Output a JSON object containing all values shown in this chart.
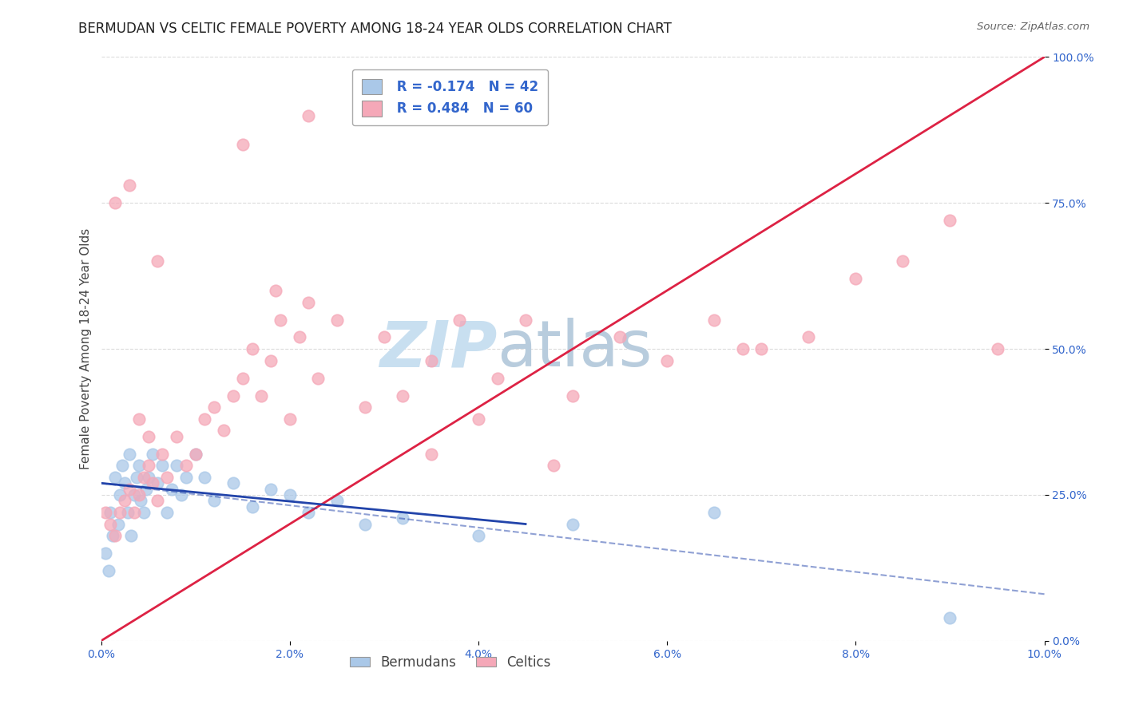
{
  "title": "BERMUDAN VS CELTIC FEMALE POVERTY AMONG 18-24 YEAR OLDS CORRELATION CHART",
  "source": "Source: ZipAtlas.com",
  "ylabel": "Female Poverty Among 18-24 Year Olds",
  "xlim": [
    0.0,
    10.0
  ],
  "ylim": [
    0.0,
    100.0
  ],
  "xtick_labels": [
    "0.0%",
    "2.0%",
    "4.0%",
    "6.0%",
    "8.0%",
    "10.0%"
  ],
  "xtick_vals": [
    0.0,
    2.0,
    4.0,
    6.0,
    8.0,
    10.0
  ],
  "ytick_labels": [
    "0.0%",
    "25.0%",
    "50.0%",
    "75.0%",
    "100.0%"
  ],
  "ytick_vals": [
    0.0,
    25.0,
    50.0,
    75.0,
    100.0
  ],
  "bermudan_color": "#aac8e8",
  "celtic_color": "#f5a8b8",
  "bermudan_R": -0.174,
  "bermudan_N": 42,
  "celtic_R": 0.484,
  "celtic_N": 60,
  "trend_bermudan_color": "#2244aa",
  "trend_celtic_color": "#dd2244",
  "background_color": "#ffffff",
  "grid_color": "#cccccc",
  "watermark_zip": "ZIP",
  "watermark_atlas": "atlas",
  "watermark_color_zip": "#c8dff0",
  "watermark_color_atlas": "#b8ccdd",
  "tick_color": "#3366cc",
  "title_fontsize": 12,
  "axis_label_fontsize": 11,
  "tick_fontsize": 10,
  "legend_fontsize": 12,
  "bermudan_x": [
    0.05,
    0.08,
    0.1,
    0.12,
    0.15,
    0.18,
    0.2,
    0.22,
    0.25,
    0.28,
    0.3,
    0.32,
    0.35,
    0.38,
    0.4,
    0.42,
    0.45,
    0.48,
    0.5,
    0.55,
    0.6,
    0.65,
    0.7,
    0.75,
    0.8,
    0.85,
    0.9,
    1.0,
    1.1,
    1.2,
    1.4,
    1.6,
    1.8,
    2.0,
    2.2,
    2.5,
    2.8,
    3.2,
    4.0,
    5.0,
    6.5,
    9.0
  ],
  "bermudan_y": [
    15,
    12,
    22,
    18,
    28,
    20,
    25,
    30,
    27,
    22,
    32,
    18,
    25,
    28,
    30,
    24,
    22,
    26,
    28,
    32,
    27,
    30,
    22,
    26,
    30,
    25,
    28,
    32,
    28,
    24,
    27,
    23,
    26,
    25,
    22,
    24,
    20,
    21,
    18,
    20,
    22,
    4
  ],
  "celtic_x": [
    0.05,
    0.1,
    0.15,
    0.2,
    0.25,
    0.3,
    0.35,
    0.4,
    0.45,
    0.5,
    0.55,
    0.6,
    0.65,
    0.7,
    0.8,
    0.9,
    1.0,
    1.1,
    1.2,
    1.3,
    1.4,
    1.5,
    1.6,
    1.7,
    1.8,
    1.85,
    1.9,
    2.0,
    2.1,
    2.2,
    2.3,
    2.5,
    2.8,
    3.0,
    3.2,
    3.5,
    3.8,
    4.0,
    4.2,
    4.5,
    5.0,
    5.5,
    6.0,
    6.5,
    7.0,
    7.5,
    8.0,
    8.5,
    9.0,
    9.5,
    0.3,
    0.6,
    1.5,
    2.2,
    3.5,
    4.8,
    6.8,
    0.15,
    0.4,
    0.5
  ],
  "celtic_y": [
    22,
    20,
    18,
    22,
    24,
    26,
    22,
    25,
    28,
    30,
    27,
    24,
    32,
    28,
    35,
    30,
    32,
    38,
    40,
    36,
    42,
    45,
    50,
    42,
    48,
    60,
    55,
    38,
    52,
    58,
    45,
    55,
    40,
    52,
    42,
    48,
    55,
    38,
    45,
    55,
    42,
    52,
    48,
    55,
    50,
    52,
    62,
    65,
    72,
    50,
    78,
    65,
    85,
    90,
    32,
    30,
    50,
    75,
    38,
    35
  ],
  "celtic_trend_x0": 0.0,
  "celtic_trend_y0": 0.0,
  "celtic_trend_x1": 10.0,
  "celtic_trend_y1": 100.0,
  "bermudan_trend_x0": 0.0,
  "bermudan_trend_y0": 27.0,
  "bermudan_trend_x1": 4.5,
  "bermudan_trend_y1": 20.0,
  "bermudan_dash_x0": 0.0,
  "bermudan_dash_y0": 27.0,
  "bermudan_dash_x1": 10.0,
  "bermudan_dash_y1": 8.0
}
